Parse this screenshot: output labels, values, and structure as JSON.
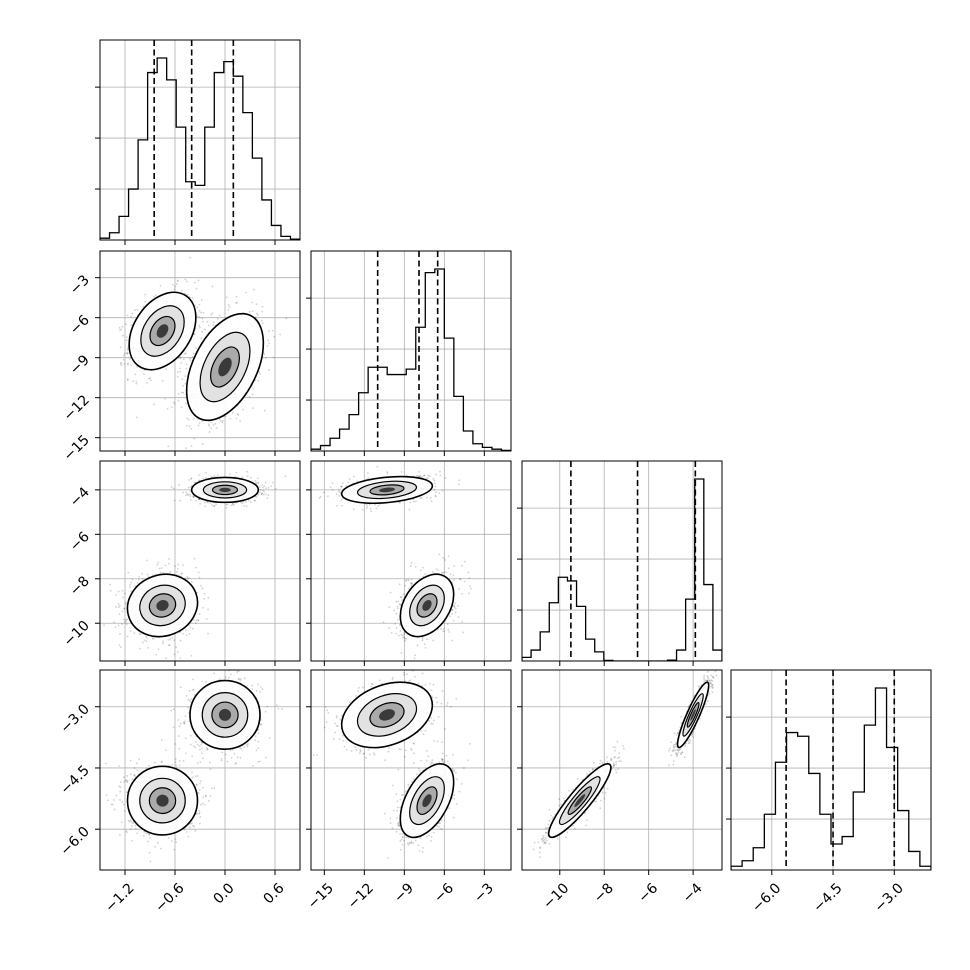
{
  "chart_data": {
    "type": "corner",
    "parameters": 4,
    "grid": true,
    "histogram_style": "step",
    "quantile_lines": "dashed",
    "contour_levels": 3,
    "colors": {
      "marks": "#000000",
      "grid": "#b0b0b0",
      "points": "#000000",
      "background": "#ffffff"
    },
    "diagonal": [
      {
        "param": 1,
        "range": [
          -1.5,
          0.9
        ],
        "quantiles": [
          -0.85,
          -0.4,
          0.1
        ],
        "ticks": [
          -1.2,
          -0.6,
          0.0,
          0.6
        ],
        "tick_labels": [
          "−1.2",
          "−0.6",
          "0.0",
          "0.6"
        ],
        "hist": [
          0.01,
          0.04,
          0.13,
          0.28,
          0.55,
          0.92,
          1.0,
          0.88,
          0.62,
          0.32,
          0.3,
          0.62,
          0.92,
          0.98,
          0.9,
          0.7,
          0.45,
          0.22,
          0.08,
          0.02,
          0.005
        ]
      },
      {
        "param": 2,
        "range": [
          -16,
          -1
        ],
        "quantiles": [
          -11,
          -7.9,
          -6.5
        ],
        "ticks": [
          -15,
          -12,
          -9,
          -6,
          -3
        ],
        "tick_labels": [
          "−15",
          "−12",
          "−9",
          "−6",
          "−3"
        ],
        "hist": [
          0.01,
          0.03,
          0.07,
          0.12,
          0.2,
          0.32,
          0.46,
          0.46,
          0.42,
          0.42,
          0.45,
          0.68,
          0.98,
          1.0,
          0.62,
          0.3,
          0.11,
          0.04,
          0.02,
          0.01,
          0.003
        ]
      },
      {
        "param": 3,
        "range": [
          -11.7,
          -2.7
        ],
        "quantiles": [
          -9.5,
          -6.5,
          -3.9
        ],
        "ticks": [
          -10,
          -8,
          -6,
          -4
        ],
        "tick_labels": [
          "−10",
          "−8",
          "−6",
          "−4"
        ],
        "hist": [
          0.02,
          0.06,
          0.16,
          0.32,
          0.46,
          0.44,
          0.3,
          0.12,
          0.05,
          0.003,
          0,
          0,
          0,
          0,
          0,
          0,
          0.005,
          0.06,
          0.34,
          1.0,
          0.42,
          0.06
        ]
      },
      {
        "param": 4,
        "range": [
          -7.0,
          -2.1
        ],
        "quantiles": [
          -5.65,
          -4.5,
          -3.0
        ],
        "ticks": [
          -6.0,
          -4.5,
          -3.0
        ],
        "tick_labels": [
          "−6.0",
          "−4.5",
          "−3.0"
        ],
        "hist": [
          0.02,
          0.05,
          0.12,
          0.3,
          0.58,
          0.74,
          0.72,
          0.52,
          0.3,
          0.14,
          0.18,
          0.42,
          0.78,
          0.98,
          0.66,
          0.32,
          0.1,
          0.02
        ]
      }
    ],
    "y_axes": [
      {
        "row": 2,
        "param": 2,
        "range": [
          -16,
          -1
        ],
        "ticks": [
          -15,
          -12,
          -9,
          -6,
          -3
        ],
        "tick_labels": [
          "−15",
          "−12",
          "−9",
          "−6",
          "−3"
        ]
      },
      {
        "row": 3,
        "param": 3,
        "range": [
          -11.7,
          -2.7
        ],
        "ticks": [
          -10,
          -8,
          -6,
          -4
        ],
        "tick_labels": [
          "−10",
          "−8",
          "−6",
          "−4"
        ]
      },
      {
        "row": 4,
        "param": 4,
        "range": [
          -7.0,
          -2.1
        ],
        "ticks": [
          -6.0,
          -4.5,
          -3.0
        ],
        "tick_labels": [
          "−6.0",
          "−4.5",
          "−3.0"
        ]
      }
    ],
    "pairs": [
      {
        "x": 1,
        "y": 2,
        "clusters": [
          {
            "mx": -0.75,
            "my": -7.0,
            "sx": 0.2,
            "sy": 1.45,
            "rho": 0.35
          },
          {
            "mx": 0.0,
            "my": -9.7,
            "sx": 0.23,
            "sy": 2.0,
            "rho": 0.45
          }
        ]
      },
      {
        "x": 1,
        "y": 3,
        "clusters": [
          {
            "mx": 0.0,
            "my": -4.0,
            "sx": 0.2,
            "sy": 0.28,
            "rho": 0.0
          },
          {
            "mx": -0.75,
            "my": -9.2,
            "sx": 0.21,
            "sy": 0.7,
            "rho": 0.1
          }
        ]
      },
      {
        "x": 1,
        "y": 4,
        "clusters": [
          {
            "mx": 0.0,
            "my": -3.2,
            "sx": 0.21,
            "sy": 0.42,
            "rho": 0.0
          },
          {
            "mx": -0.75,
            "my": -5.3,
            "sx": 0.21,
            "sy": 0.42,
            "rho": 0.0
          }
        ]
      },
      {
        "x": 2,
        "y": 3,
        "clusters": [
          {
            "mx": -10.3,
            "my": -4.0,
            "sx": 1.7,
            "sy": 0.3,
            "rho": 0.3
          },
          {
            "mx": -7.3,
            "my": -9.2,
            "sx": 1.0,
            "sy": 0.7,
            "rho": 0.35
          }
        ]
      },
      {
        "x": 2,
        "y": 4,
        "clusters": [
          {
            "mx": -10.3,
            "my": -3.2,
            "sx": 1.7,
            "sy": 0.4,
            "rho": 0.3
          },
          {
            "mx": -7.3,
            "my": -5.3,
            "sx": 1.0,
            "sy": 0.45,
            "rho": 0.5
          }
        ]
      },
      {
        "x": 3,
        "y": 4,
        "clusters": [
          {
            "mx": -4.0,
            "my": -3.2,
            "sx": 0.35,
            "sy": 0.4,
            "rho": 0.9
          },
          {
            "mx": -9.1,
            "my": -5.3,
            "sx": 0.7,
            "sy": 0.45,
            "rho": 0.9
          }
        ]
      }
    ]
  }
}
